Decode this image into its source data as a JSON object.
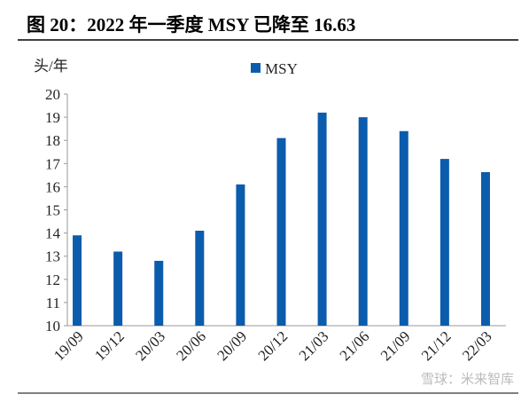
{
  "chart_data": {
    "type": "bar",
    "title": "图 20：2022 年一季度 MSY 已降至 16.63",
    "y_label": "头/年",
    "categories": [
      "19/09",
      "19/12",
      "20/03",
      "20/06",
      "20/09",
      "20/12",
      "21/03",
      "21/06",
      "21/09",
      "21/12",
      "22/03"
    ],
    "series": [
      {
        "name": "MSY",
        "color": "#0b5cad",
        "values": [
          13.9,
          13.2,
          12.8,
          14.1,
          16.1,
          18.1,
          19.2,
          19.0,
          18.4,
          17.2,
          16.63
        ]
      }
    ],
    "ylim": [
      10,
      20
    ],
    "yticks": [
      10,
      11,
      12,
      13,
      14,
      15,
      16,
      17,
      18,
      19,
      20
    ],
    "legend": "top",
    "grid": false,
    "watermark": "雪球：米来智库"
  }
}
